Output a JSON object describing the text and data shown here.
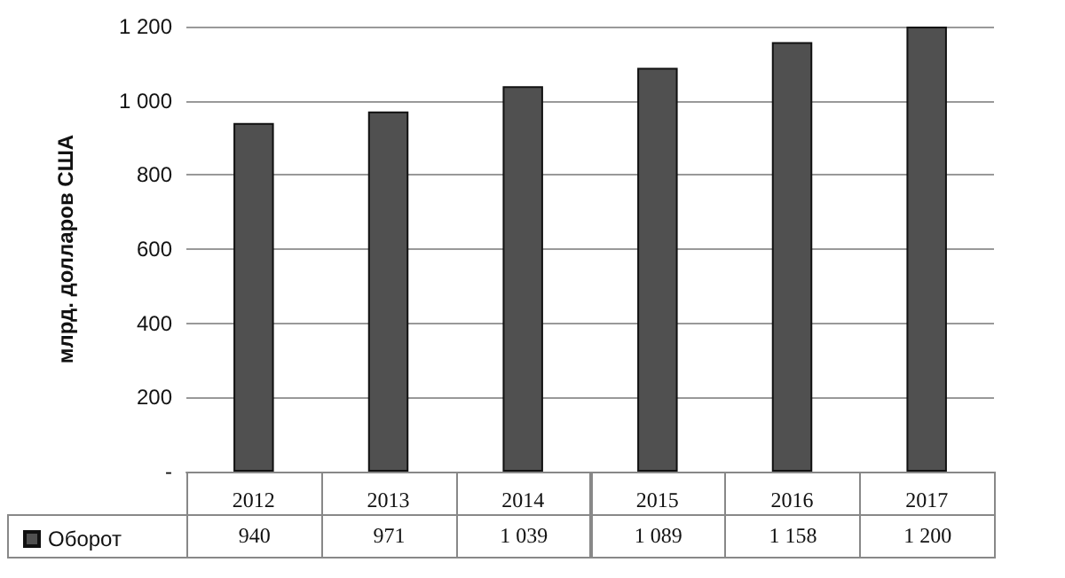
{
  "chart_data": {
    "type": "bar",
    "ylabel": "млрд. долларов США",
    "categories": [
      "2012",
      "2013",
      "2014",
      "2015",
      "2016",
      "2017"
    ],
    "series": [
      {
        "name": "Оборот",
        "color": "#505050",
        "values": [
          940,
          971,
          1039,
          1089,
          1158,
          1200
        ],
        "value_labels": [
          "940",
          "971",
          "1 039",
          "1 089",
          "1 158",
          "1 200"
        ]
      }
    ],
    "ylim": [
      0,
      1200
    ],
    "yticks": [
      {
        "value": 0,
        "label": "-"
      },
      200,
      400,
      600,
      800,
      {
        "value": 1000,
        "label": "1 000"
      },
      {
        "value": 1200,
        "label": "1 200"
      }
    ],
    "grid": "y",
    "legend": "bottom"
  }
}
